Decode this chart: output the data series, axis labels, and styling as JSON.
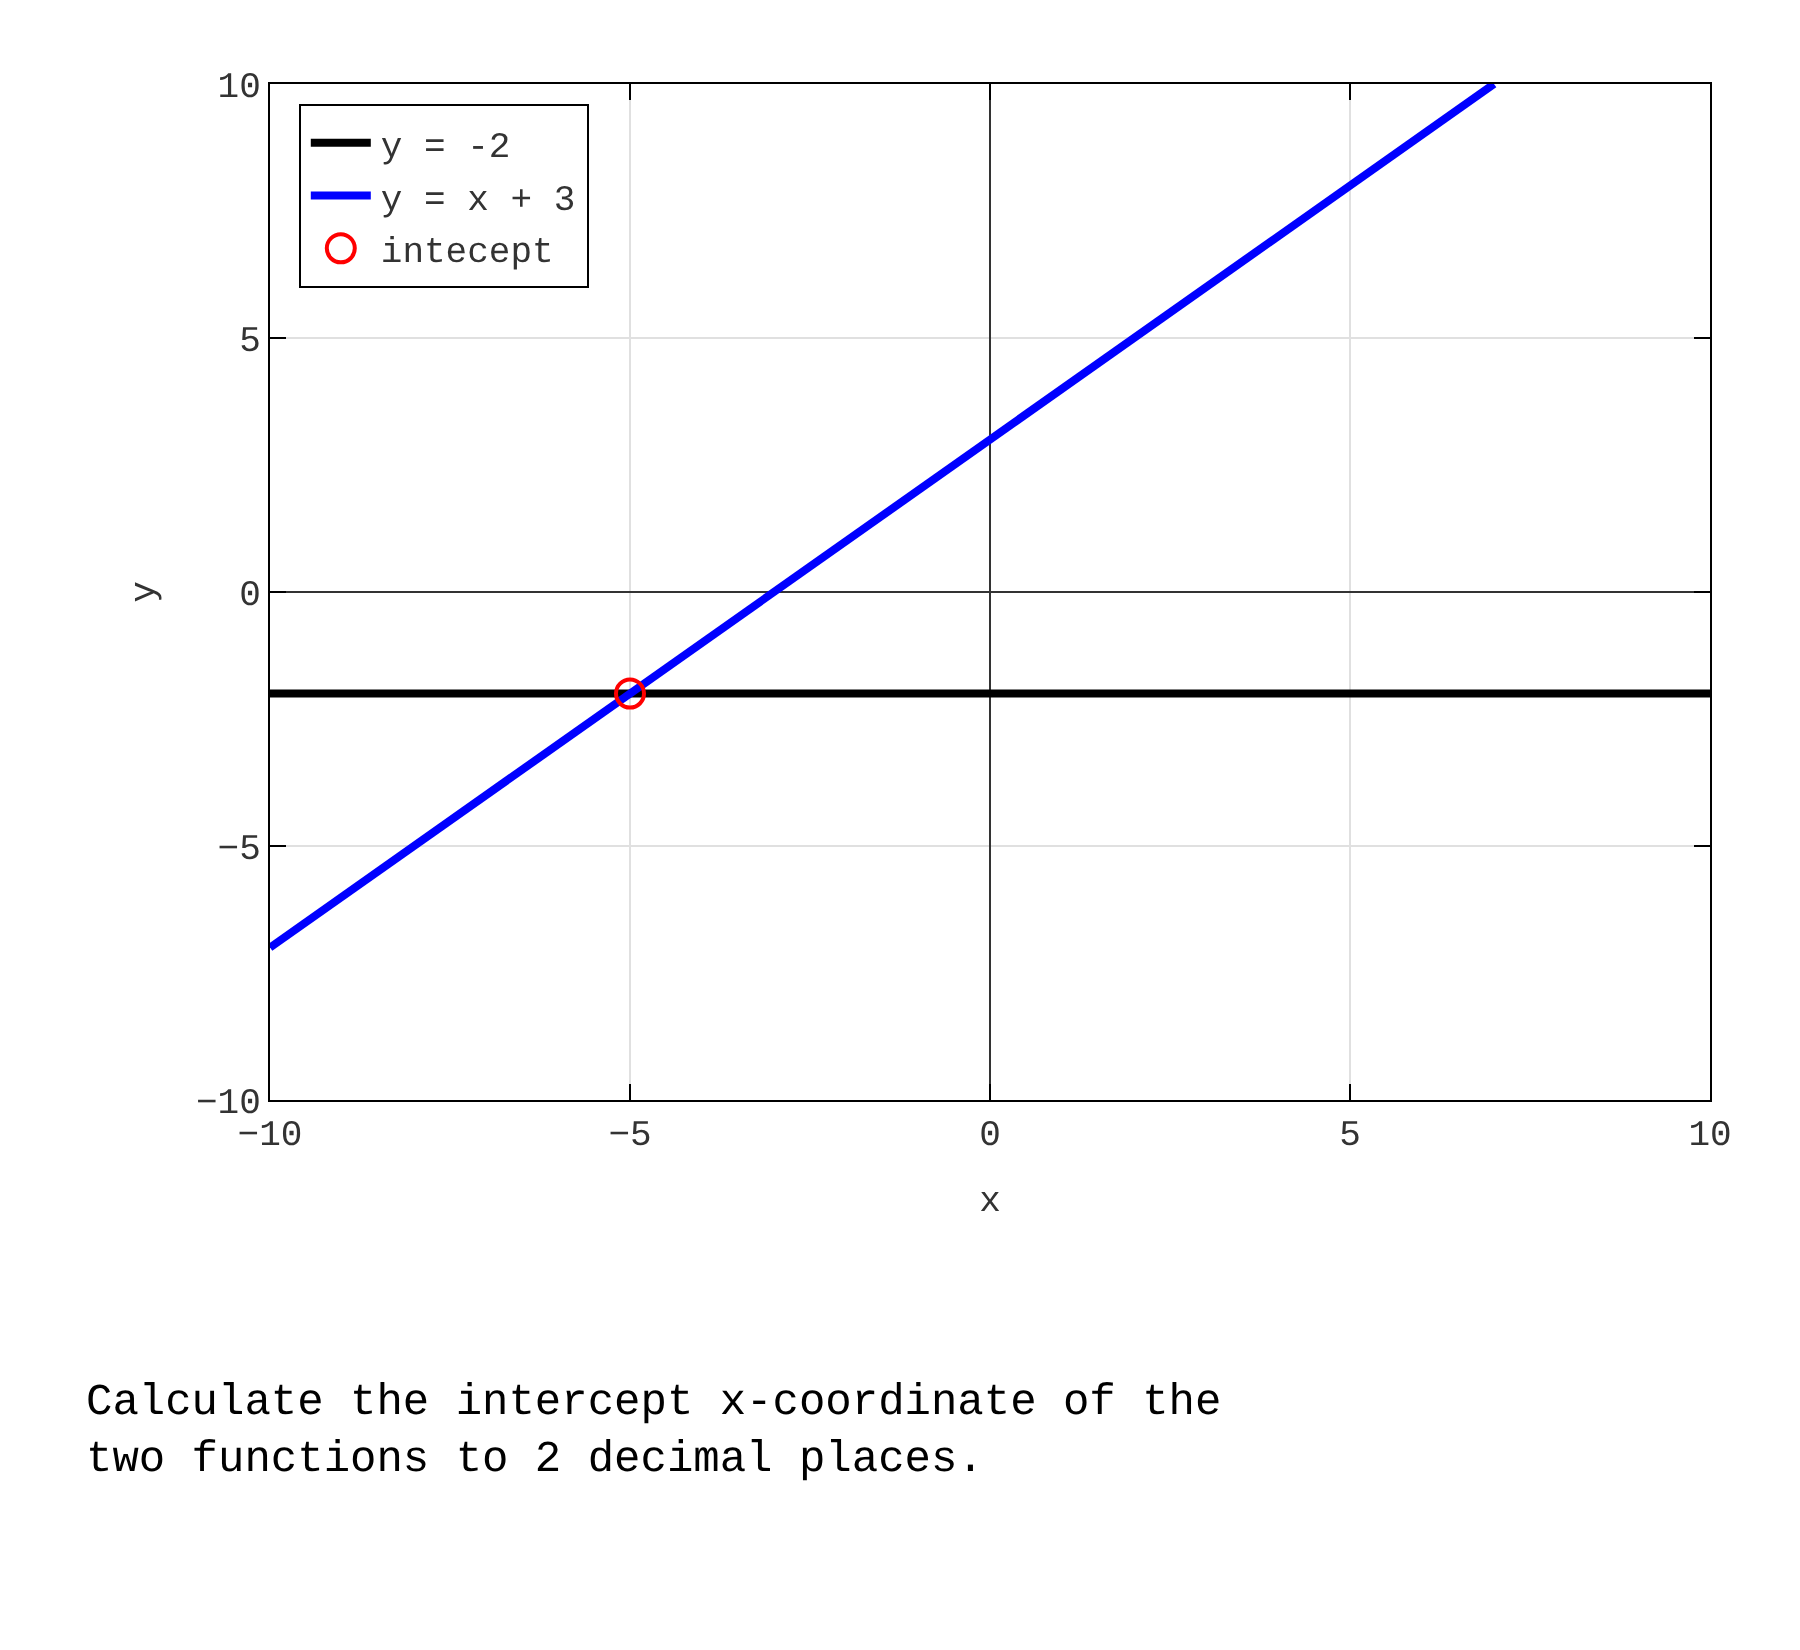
{
  "chart_data": {
    "type": "line",
    "xlabel": "x",
    "ylabel": "y",
    "xlim": [
      -10,
      10
    ],
    "xticks": [
      -10,
      -5,
      0,
      5,
      10
    ],
    "ylim": [
      -10,
      10
    ],
    "yticks": [
      -10,
      -5,
      0,
      5,
      10
    ],
    "grid": true,
    "legend": "top left",
    "line_style": "solid",
    "series": [
      {
        "name": "y = -2",
        "color": "#000000",
        "marker": "none",
        "x": [
          -10,
          10
        ],
        "values": [
          -2,
          -2
        ]
      },
      {
        "name": "y = x + 3",
        "color": "#0000ff",
        "marker": "none",
        "x": [
          -10,
          7
        ],
        "values": [
          -7,
          10
        ]
      },
      {
        "name": "intecept",
        "color": "#ff0000",
        "type": "scatter",
        "marker": "circle",
        "x": [
          -5
        ],
        "values": [
          -2
        ]
      }
    ],
    "annotations": [
      "Calculate the intercept x-coordinate of the\ntwo functions to 2 decimal places."
    ]
  }
}
